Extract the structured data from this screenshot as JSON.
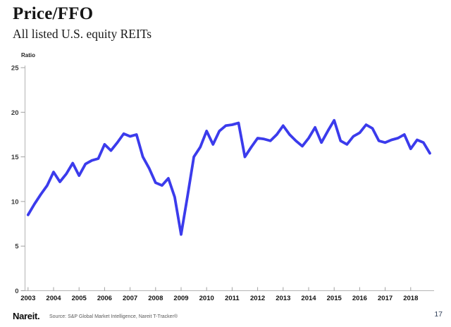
{
  "page": {
    "title": "Price/FFO",
    "subtitle": "All listed U.S. equity REITs",
    "page_number": "17"
  },
  "footer": {
    "logo_text": "Nareit.",
    "source_text": "Source: S&P Global Market Intelligence, Nareit T-Tracker®"
  },
  "chart_data": {
    "type": "line",
    "title": "Price/FFO",
    "subtitle": "All listed U.S. equity REITs",
    "ylabel": "Ratio",
    "xlabel": "",
    "ylim": [
      0,
      25
    ],
    "y_ticks": [
      0,
      5,
      10,
      15,
      20,
      25
    ],
    "x_tick_labels": [
      "2003",
      "2004",
      "2005",
      "2006",
      "2007",
      "2008",
      "2009",
      "2010",
      "2011",
      "2012",
      "2013",
      "2014",
      "2015",
      "2016",
      "2017",
      "2018"
    ],
    "frequency": "quarterly",
    "grid": false,
    "legend": false,
    "line_color": "#3b3bec",
    "axis_color": "#b4b4b4",
    "series": [
      {
        "name": "Price/FFO ratio, all listed U.S. equity REITs",
        "start": "2003-Q1",
        "end": "2018-Q4",
        "values": [
          8.5,
          9.7,
          10.8,
          11.8,
          13.3,
          12.2,
          13.1,
          14.3,
          12.9,
          14.2,
          14.6,
          14.8,
          16.4,
          15.7,
          16.6,
          17.6,
          17.3,
          17.5,
          15.0,
          13.7,
          12.1,
          11.8,
          12.6,
          10.5,
          6.3,
          10.6,
          15.0,
          16.1,
          17.9,
          16.4,
          17.9,
          18.5,
          18.6,
          18.8,
          15.0,
          16.1,
          17.1,
          17.0,
          16.8,
          17.5,
          18.5,
          17.5,
          16.8,
          16.2,
          17.1,
          18.3,
          16.6,
          17.9,
          19.1,
          16.8,
          16.4,
          17.3,
          17.7,
          18.6,
          18.2,
          16.8,
          16.6,
          16.9,
          17.1,
          17.5,
          15.9,
          16.9,
          16.6,
          15.4
        ]
      }
    ]
  }
}
